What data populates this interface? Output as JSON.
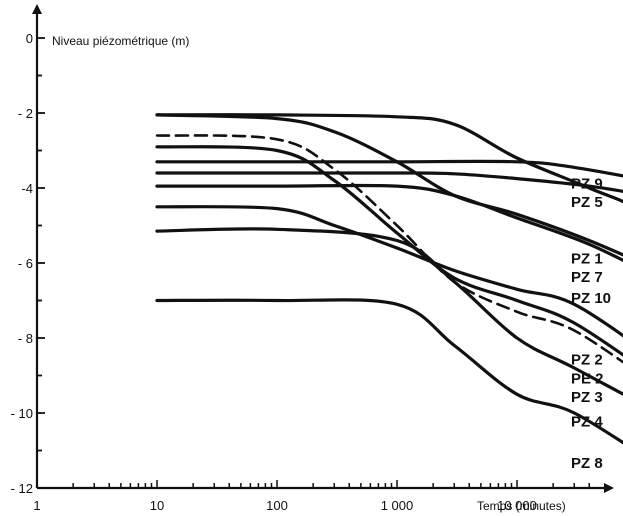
{
  "chart_data": {
    "type": "line",
    "ylabel": "Niveau piézométrique (m)",
    "xlabel": "Temps (minutes)",
    "x_scale": "log",
    "xlim": [
      1,
      100000
    ],
    "ylim": [
      -12,
      0
    ],
    "x_ticks": [
      {
        "value": 1,
        "label": "1"
      },
      {
        "value": 10,
        "label": "10"
      },
      {
        "value": 100,
        "label": "100"
      },
      {
        "value": 1000,
        "label": "1 000"
      },
      {
        "value": 10000,
        "label": "10 000"
      }
    ],
    "y_ticks": [
      {
        "value": 0,
        "label": "0"
      },
      {
        "value": -2,
        "label": "- 2"
      },
      {
        "value": -4,
        "label": "-4"
      },
      {
        "value": -6,
        "label": "- 6"
      },
      {
        "value": -8,
        "label": "- 8"
      },
      {
        "value": -10,
        "label": "- 10"
      },
      {
        "value": -12,
        "label": "- 12"
      }
    ],
    "series": [
      {
        "name": "PZ 9",
        "dashed": false,
        "points": [
          [
            10,
            -3.3
          ],
          [
            100,
            -3.3
          ],
          [
            1000,
            -3.3
          ],
          [
            10000,
            -3.3
          ],
          [
            30000,
            -3.45
          ],
          [
            150000,
            -3.85
          ]
        ]
      },
      {
        "name": "PZ 5",
        "dashed": false,
        "points": [
          [
            10,
            -3.6
          ],
          [
            100,
            -3.6
          ],
          [
            1000,
            -3.6
          ],
          [
            3000,
            -3.62
          ],
          [
            10000,
            -3.75
          ],
          [
            40000,
            -3.95
          ],
          [
            150000,
            -4.25
          ]
        ]
      },
      {
        "name": "PZ 1",
        "dashed": false,
        "points": [
          [
            10,
            -2.05
          ],
          [
            100,
            -2.05
          ],
          [
            1000,
            -2.1
          ],
          [
            3000,
            -2.3
          ],
          [
            10000,
            -3.2
          ],
          [
            40000,
            -4.0
          ],
          [
            100000,
            -4.6
          ],
          [
            150000,
            -5.7
          ]
        ]
      },
      {
        "name": "PZ 7",
        "dashed": false,
        "points": [
          [
            10,
            -2.05
          ],
          [
            100,
            -2.15
          ],
          [
            300,
            -2.5
          ],
          [
            1000,
            -3.3
          ],
          [
            3000,
            -4.2
          ],
          [
            10000,
            -4.7
          ],
          [
            40000,
            -5.4
          ],
          [
            150000,
            -6.2
          ]
        ]
      },
      {
        "name": "PZ 10",
        "dashed": false,
        "points": [
          [
            10,
            -3.95
          ],
          [
            100,
            -3.95
          ],
          [
            1000,
            -3.95
          ],
          [
            3000,
            -4.2
          ],
          [
            10000,
            -4.8
          ],
          [
            40000,
            -5.5
          ],
          [
            150000,
            -6.4
          ]
        ]
      },
      {
        "name": "PZ 2",
        "dashed": false,
        "points": [
          [
            10,
            -4.5
          ],
          [
            100,
            -4.55
          ],
          [
            300,
            -5.0
          ],
          [
            1000,
            -5.6
          ],
          [
            3000,
            -6.2
          ],
          [
            10000,
            -6.7
          ],
          [
            30000,
            -7.1
          ],
          [
            150000,
            -8.6
          ]
        ]
      },
      {
        "name": "PE 2",
        "dashed": true,
        "points": [
          [
            10,
            -2.6
          ],
          [
            100,
            -2.7
          ],
          [
            300,
            -3.5
          ],
          [
            1000,
            -5.0
          ],
          [
            3000,
            -6.5
          ],
          [
            10000,
            -7.3
          ],
          [
            30000,
            -7.8
          ],
          [
            150000,
            -9.3
          ]
        ]
      },
      {
        "name": "PZ 3",
        "dashed": false,
        "points": [
          [
            10,
            -2.9
          ],
          [
            100,
            -3.0
          ],
          [
            300,
            -3.8
          ],
          [
            1000,
            -5.2
          ],
          [
            3000,
            -6.4
          ],
          [
            10000,
            -7.0
          ],
          [
            30000,
            -7.6
          ],
          [
            150000,
            -9.1
          ]
        ]
      },
      {
        "name": "PZ 4",
        "dashed": false,
        "points": [
          [
            10,
            -5.15
          ],
          [
            100,
            -5.1
          ],
          [
            1000,
            -5.4
          ],
          [
            3000,
            -6.5
          ],
          [
            10000,
            -8.0
          ],
          [
            30000,
            -8.8
          ],
          [
            150000,
            -10.0
          ]
        ]
      },
      {
        "name": "PZ 8",
        "dashed": false,
        "points": [
          [
            10,
            -7.0
          ],
          [
            100,
            -7.0
          ],
          [
            1000,
            -7.1
          ],
          [
            3000,
            -8.2
          ],
          [
            10000,
            -9.5
          ],
          [
            30000,
            -10.0
          ],
          [
            150000,
            -11.4
          ]
        ]
      }
    ],
    "legend_labels": [
      {
        "label": "PZ 9",
        "at": -3.85
      },
      {
        "label": "PZ 5",
        "at": -4.35
      },
      {
        "label": "PZ 1",
        "at": -5.85
      },
      {
        "label": "PZ 7",
        "at": -6.35
      },
      {
        "label": "PZ 10",
        "at": -6.9
      },
      {
        "label": "PZ 2",
        "at": -8.55
      },
      {
        "label": "PE 2",
        "at": -9.05
      },
      {
        "label": "PZ 3",
        "at": -9.55
      },
      {
        "label": "PZ 4",
        "at": -10.2
      },
      {
        "label": "PZ 8",
        "at": -11.3
      }
    ],
    "grid": false,
    "legend_position": "right, at line ends"
  }
}
